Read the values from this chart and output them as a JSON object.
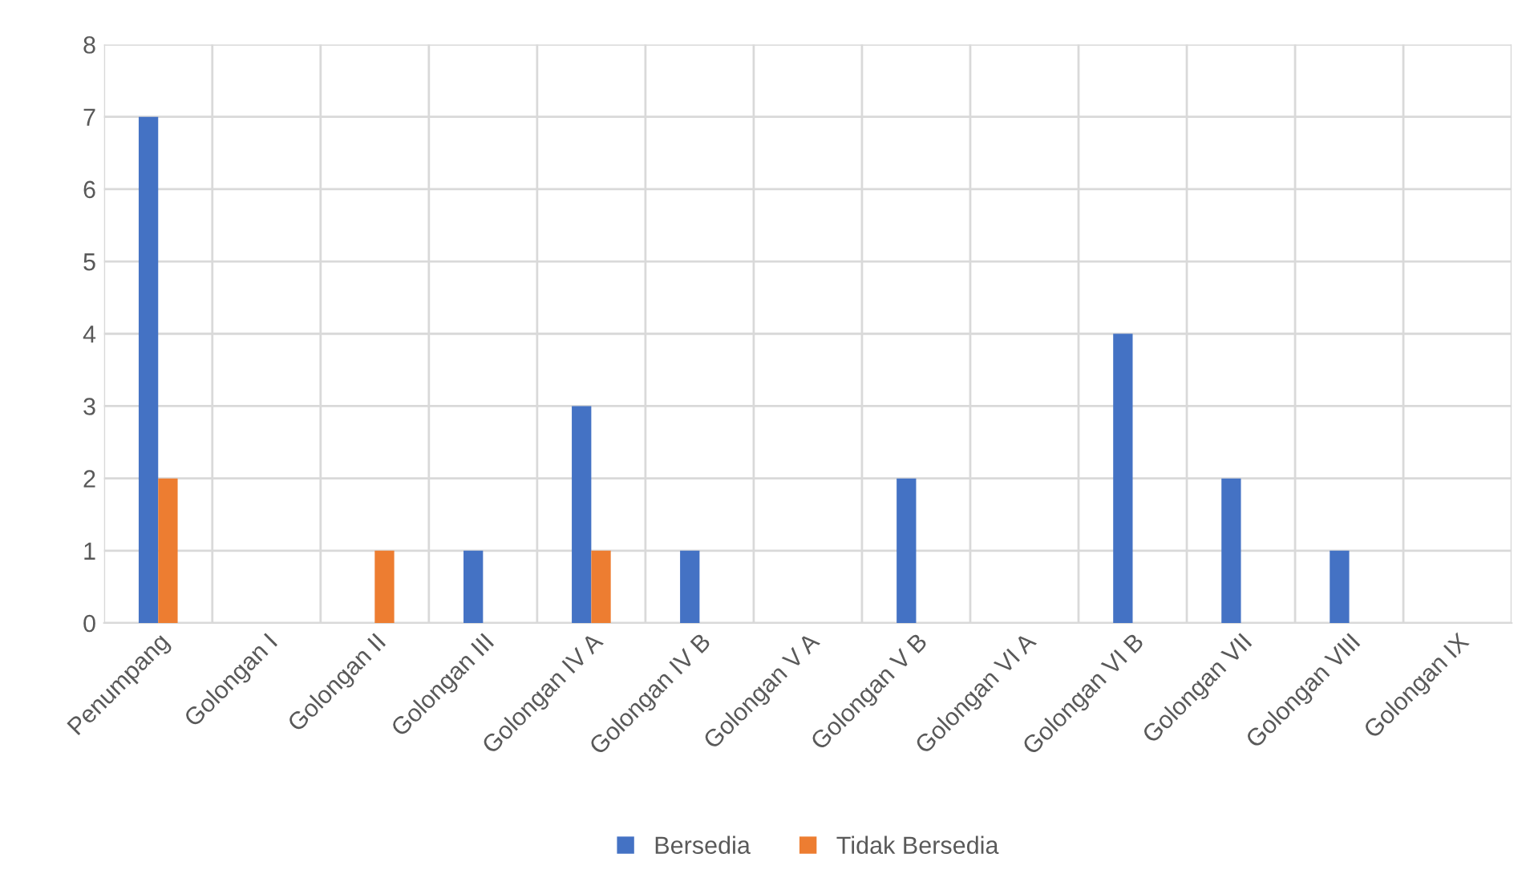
{
  "chart_data": {
    "type": "bar",
    "categories": [
      "Penumpang",
      "Golongan I",
      "Golongan II",
      "Golongan III",
      "Golongan IV A",
      "Golongan IV B",
      "Golongan V A",
      "Golongan V B",
      "Golongan VI A",
      "Golongan VI B",
      "Golongan VII",
      "Golongan VIII",
      "Golongan IX"
    ],
    "series": [
      {
        "name": "Bersedia",
        "color": "#4472c4",
        "values": [
          7,
          0,
          0,
          1,
          3,
          1,
          0,
          2,
          0,
          4,
          2,
          1,
          0
        ]
      },
      {
        "name": "Tidak Bersedia",
        "color": "#ed7d31",
        "values": [
          2,
          0,
          1,
          0,
          1,
          0,
          0,
          0,
          0,
          0,
          0,
          0,
          0
        ]
      }
    ],
    "ylim": [
      0,
      8
    ],
    "yticks": [
      0,
      1,
      2,
      3,
      4,
      5,
      6,
      7,
      8
    ],
    "grid": true,
    "legend": "bottom"
  }
}
